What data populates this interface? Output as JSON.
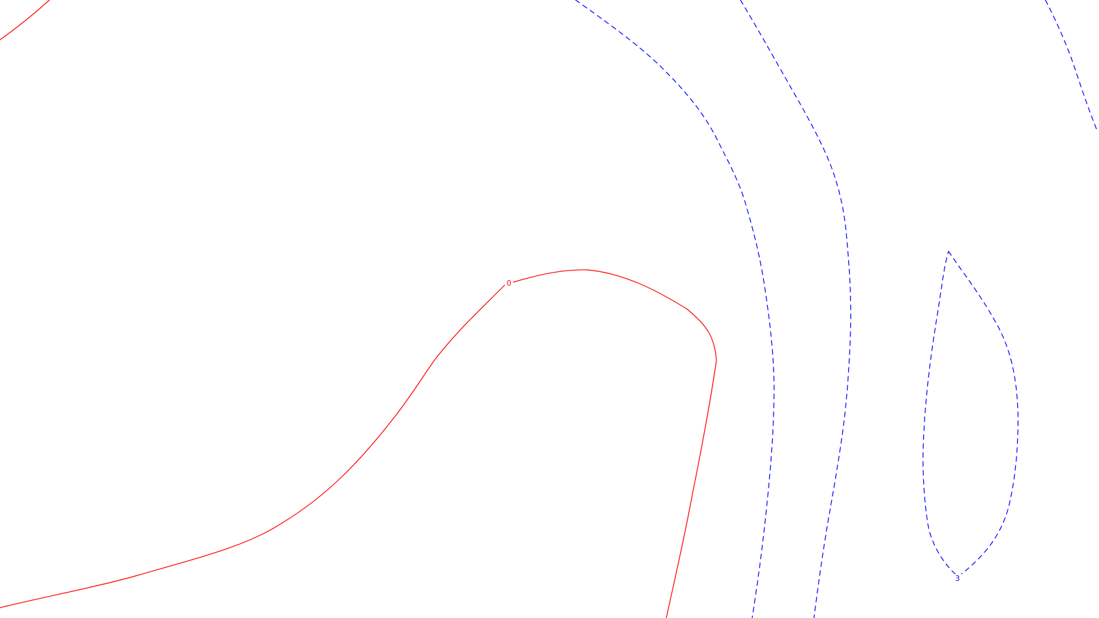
{
  "map": {
    "background": "#ffffff",
    "colors": {
      "negative": "#ff0000",
      "positive": "#0000ff"
    },
    "contours": [
      {
        "id": "red-corner",
        "color_key": "negative",
        "style": "solid",
        "label": ""
      },
      {
        "id": "red-main",
        "color_key": "negative",
        "style": "solid",
        "label": "0"
      },
      {
        "id": "blue-1",
        "color_key": "positive",
        "style": "dashed",
        "label": ""
      },
      {
        "id": "blue-2",
        "color_key": "positive",
        "style": "dashed",
        "label": ""
      },
      {
        "id": "blue-corner",
        "color_key": "positive",
        "style": "dashed",
        "label": ""
      },
      {
        "id": "blue-loop",
        "color_key": "positive",
        "style": "dashed",
        "label": "3"
      }
    ]
  }
}
